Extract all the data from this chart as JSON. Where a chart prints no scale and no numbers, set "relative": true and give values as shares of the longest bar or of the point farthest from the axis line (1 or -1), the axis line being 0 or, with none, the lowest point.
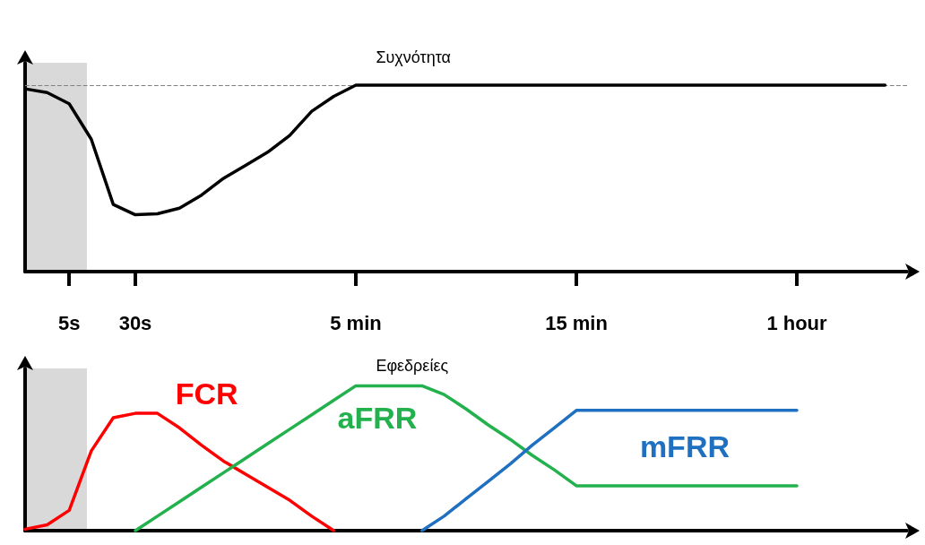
{
  "chart_data": [
    {
      "type": "line",
      "title": "Συχνότητα",
      "relative": true,
      "categories": [
        null,
        null,
        "5s",
        null,
        null,
        "30s",
        null,
        null,
        null,
        null,
        null,
        null,
        null,
        null,
        null,
        "5 min",
        null,
        null,
        null,
        null,
        null,
        null,
        null,
        null,
        null,
        "15 min",
        null,
        null,
        null,
        null,
        null,
        null,
        null,
        null,
        null,
        "1 hour",
        null,
        null,
        null,
        null,
        null
      ],
      "tick_labels": "x",
      "grid": false,
      "legend": false,
      "marker": "none",
      "line_style": "solid",
      "series": [
        {
          "color": "#000000",
          "values": [
            0.98,
            0.96,
            0.9,
            0.71,
            0.36,
            0.305,
            0.31,
            0.34,
            0.41,
            0.5,
            0.57,
            0.64,
            0.73,
            0.86,
            0.94,
            1.0,
            1.0,
            1.0,
            1.0,
            1.0,
            1.0,
            1.0,
            1.0,
            1.0,
            1.0,
            1.0,
            1.0,
            1.0,
            1.0,
            1.0,
            1.0,
            1.0,
            1.0,
            1.0,
            1.0,
            1.0,
            1.0,
            1.0,
            1.0,
            1.0,
            null
          ]
        }
      ],
      "ref_lines": [
        {
          "axis": "y",
          "value": 1,
          "color": "#808080",
          "line_style": "dashed"
        }
      ]
    },
    {
      "type": "line",
      "title": "Εφεδρείες",
      "relative": true,
      "categories": [
        null,
        null,
        null,
        null,
        null,
        null,
        null,
        null,
        null,
        null,
        null,
        null,
        null,
        null,
        null,
        null,
        null,
        null,
        null,
        null,
        null,
        null,
        null,
        null,
        null,
        null,
        null,
        null,
        null,
        null,
        null,
        null,
        null,
        null,
        null,
        null,
        null,
        null,
        null,
        null,
        null
      ],
      "tick_labels": false,
      "grid": false,
      "legend": false,
      "marker": "none",
      "line_style": "solid",
      "series": [
        {
          "name": "FCR",
          "color": "#ff0000",
          "values": [
            0.01,
            0.04,
            0.14,
            0.55,
            0.78,
            0.81,
            0.81,
            0.71,
            0.59,
            0.48,
            0.39,
            0.3,
            0.21,
            0.1,
            0,
            null,
            null,
            null,
            null,
            null,
            null,
            null,
            null,
            null,
            null,
            null,
            null,
            null,
            null,
            null,
            null,
            null,
            null,
            null,
            null,
            null,
            null,
            null,
            null,
            null,
            null
          ]
        },
        {
          "name": "aFRR",
          "color": "#22b14c",
          "values": [
            null,
            null,
            null,
            null,
            null,
            0,
            0.1,
            0.2,
            0.3,
            0.4,
            0.5,
            0.6,
            0.7,
            0.8,
            0.9,
            1,
            1,
            1,
            1,
            0.94,
            0.84,
            0.73,
            0.63,
            0.52,
            0.42,
            0.31,
            0.31,
            0.31,
            0.31,
            0.31,
            0.31,
            0.31,
            0.31,
            0.31,
            0.31,
            0.31,
            null,
            null,
            null,
            null,
            null
          ]
        },
        {
          "name": "mFRR",
          "color": "#1f70c1",
          "values": [
            null,
            null,
            null,
            null,
            null,
            null,
            null,
            null,
            null,
            null,
            null,
            null,
            null,
            null,
            null,
            null,
            null,
            null,
            0,
            0.1,
            0.22,
            0.34,
            0.46,
            0.59,
            0.71,
            0.83,
            0.83,
            0.83,
            0.83,
            0.83,
            0.83,
            0.83,
            0.83,
            0.83,
            0.83,
            0.83,
            null,
            null,
            null,
            null,
            null
          ]
        }
      ]
    }
  ]
}
